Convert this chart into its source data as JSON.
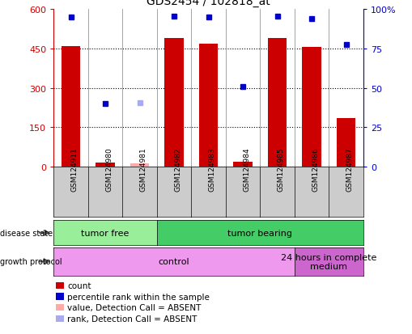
{
  "title": "GDS2454 / 102818_at",
  "samples": [
    "GSM124911",
    "GSM124980",
    "GSM124981",
    "GSM124982",
    "GSM124983",
    "GSM124984",
    "GSM124985",
    "GSM124986",
    "GSM124987"
  ],
  "bar_values": [
    460,
    15,
    0,
    490,
    470,
    20,
    490,
    455,
    185
  ],
  "bar_colors": [
    "#cc0000",
    "#cc0000",
    null,
    "#cc0000",
    "#cc0000",
    "#cc0000",
    "#cc0000",
    "#cc0000",
    "#cc0000"
  ],
  "absent_bar_values": [
    0,
    0,
    12,
    0,
    0,
    0,
    0,
    0,
    0
  ],
  "dot_values": [
    570,
    240,
    245,
    575,
    570,
    305,
    575,
    565,
    465
  ],
  "dot_absent": [
    false,
    false,
    true,
    false,
    false,
    false,
    false,
    false,
    false
  ],
  "ylim": [
    0,
    600
  ],
  "y2lim": [
    0,
    100
  ],
  "yticks": [
    0,
    150,
    300,
    450,
    600
  ],
  "ytick_labels": [
    "0",
    "150",
    "300",
    "450",
    "600"
  ],
  "y2ticks": [
    0,
    25,
    50,
    75,
    100
  ],
  "y2tick_labels": [
    "0",
    "25",
    "50",
    "75",
    "100%"
  ],
  "disease_state_groups": [
    {
      "label": "tumor free",
      "start": 0,
      "end": 3,
      "color": "#99ee99"
    },
    {
      "label": "tumor bearing",
      "start": 3,
      "end": 9,
      "color": "#44cc66"
    }
  ],
  "growth_protocol_groups": [
    {
      "label": "control",
      "start": 0,
      "end": 7,
      "color": "#ee99ee"
    },
    {
      "label": "24 hours in complete\nmedium",
      "start": 7,
      "end": 9,
      "color": "#cc66cc"
    }
  ],
  "legend_items": [
    {
      "color": "#cc0000",
      "label": "count"
    },
    {
      "color": "#0000cc",
      "label": "percentile rank within the sample"
    },
    {
      "color": "#ffaaaa",
      "label": "value, Detection Call = ABSENT"
    },
    {
      "color": "#aaaaee",
      "label": "rank, Detection Call = ABSENT"
    }
  ],
  "bar_width": 0.55,
  "dot_color": "#0000cc",
  "dot_absent_color": "#aaaaee",
  "absent_bar_color": "#ffaaaa",
  "tick_color_left": "#cc0000",
  "tick_color_right": "#0000cc",
  "sample_box_color": "#cccccc",
  "label_fontsize": 7,
  "annotation_fontsize": 8
}
